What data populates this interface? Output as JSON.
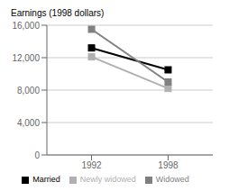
{
  "chart_data": {
    "type": "line",
    "y_label": "Earnings (1998 dollars)",
    "x": [
      1992,
      1998
    ],
    "series": [
      {
        "name": "Married",
        "color": "#000000",
        "marker": "square",
        "values": [
          13200,
          10500
        ]
      },
      {
        "name": "Newly widowed",
        "color": "#b0b0b0",
        "marker": "square",
        "values": [
          12100,
          8200
        ]
      },
      {
        "name": "Widowed",
        "color": "#808080",
        "marker": "square",
        "values": [
          15500,
          9000
        ]
      }
    ],
    "xlim": [
      1988.5,
      2001.5
    ],
    "xticks": [
      1992,
      1998
    ],
    "ylim": [
      0,
      16000
    ],
    "yticks": [
      0,
      {
        "value": 4000,
        "label": "4,000"
      },
      {
        "value": 8000,
        "label": "8,000"
      },
      {
        "value": 12000,
        "label": "12,000"
      },
      {
        "value": 16000,
        "label": "16,000"
      }
    ],
    "grid": true,
    "legend": "bottom"
  }
}
